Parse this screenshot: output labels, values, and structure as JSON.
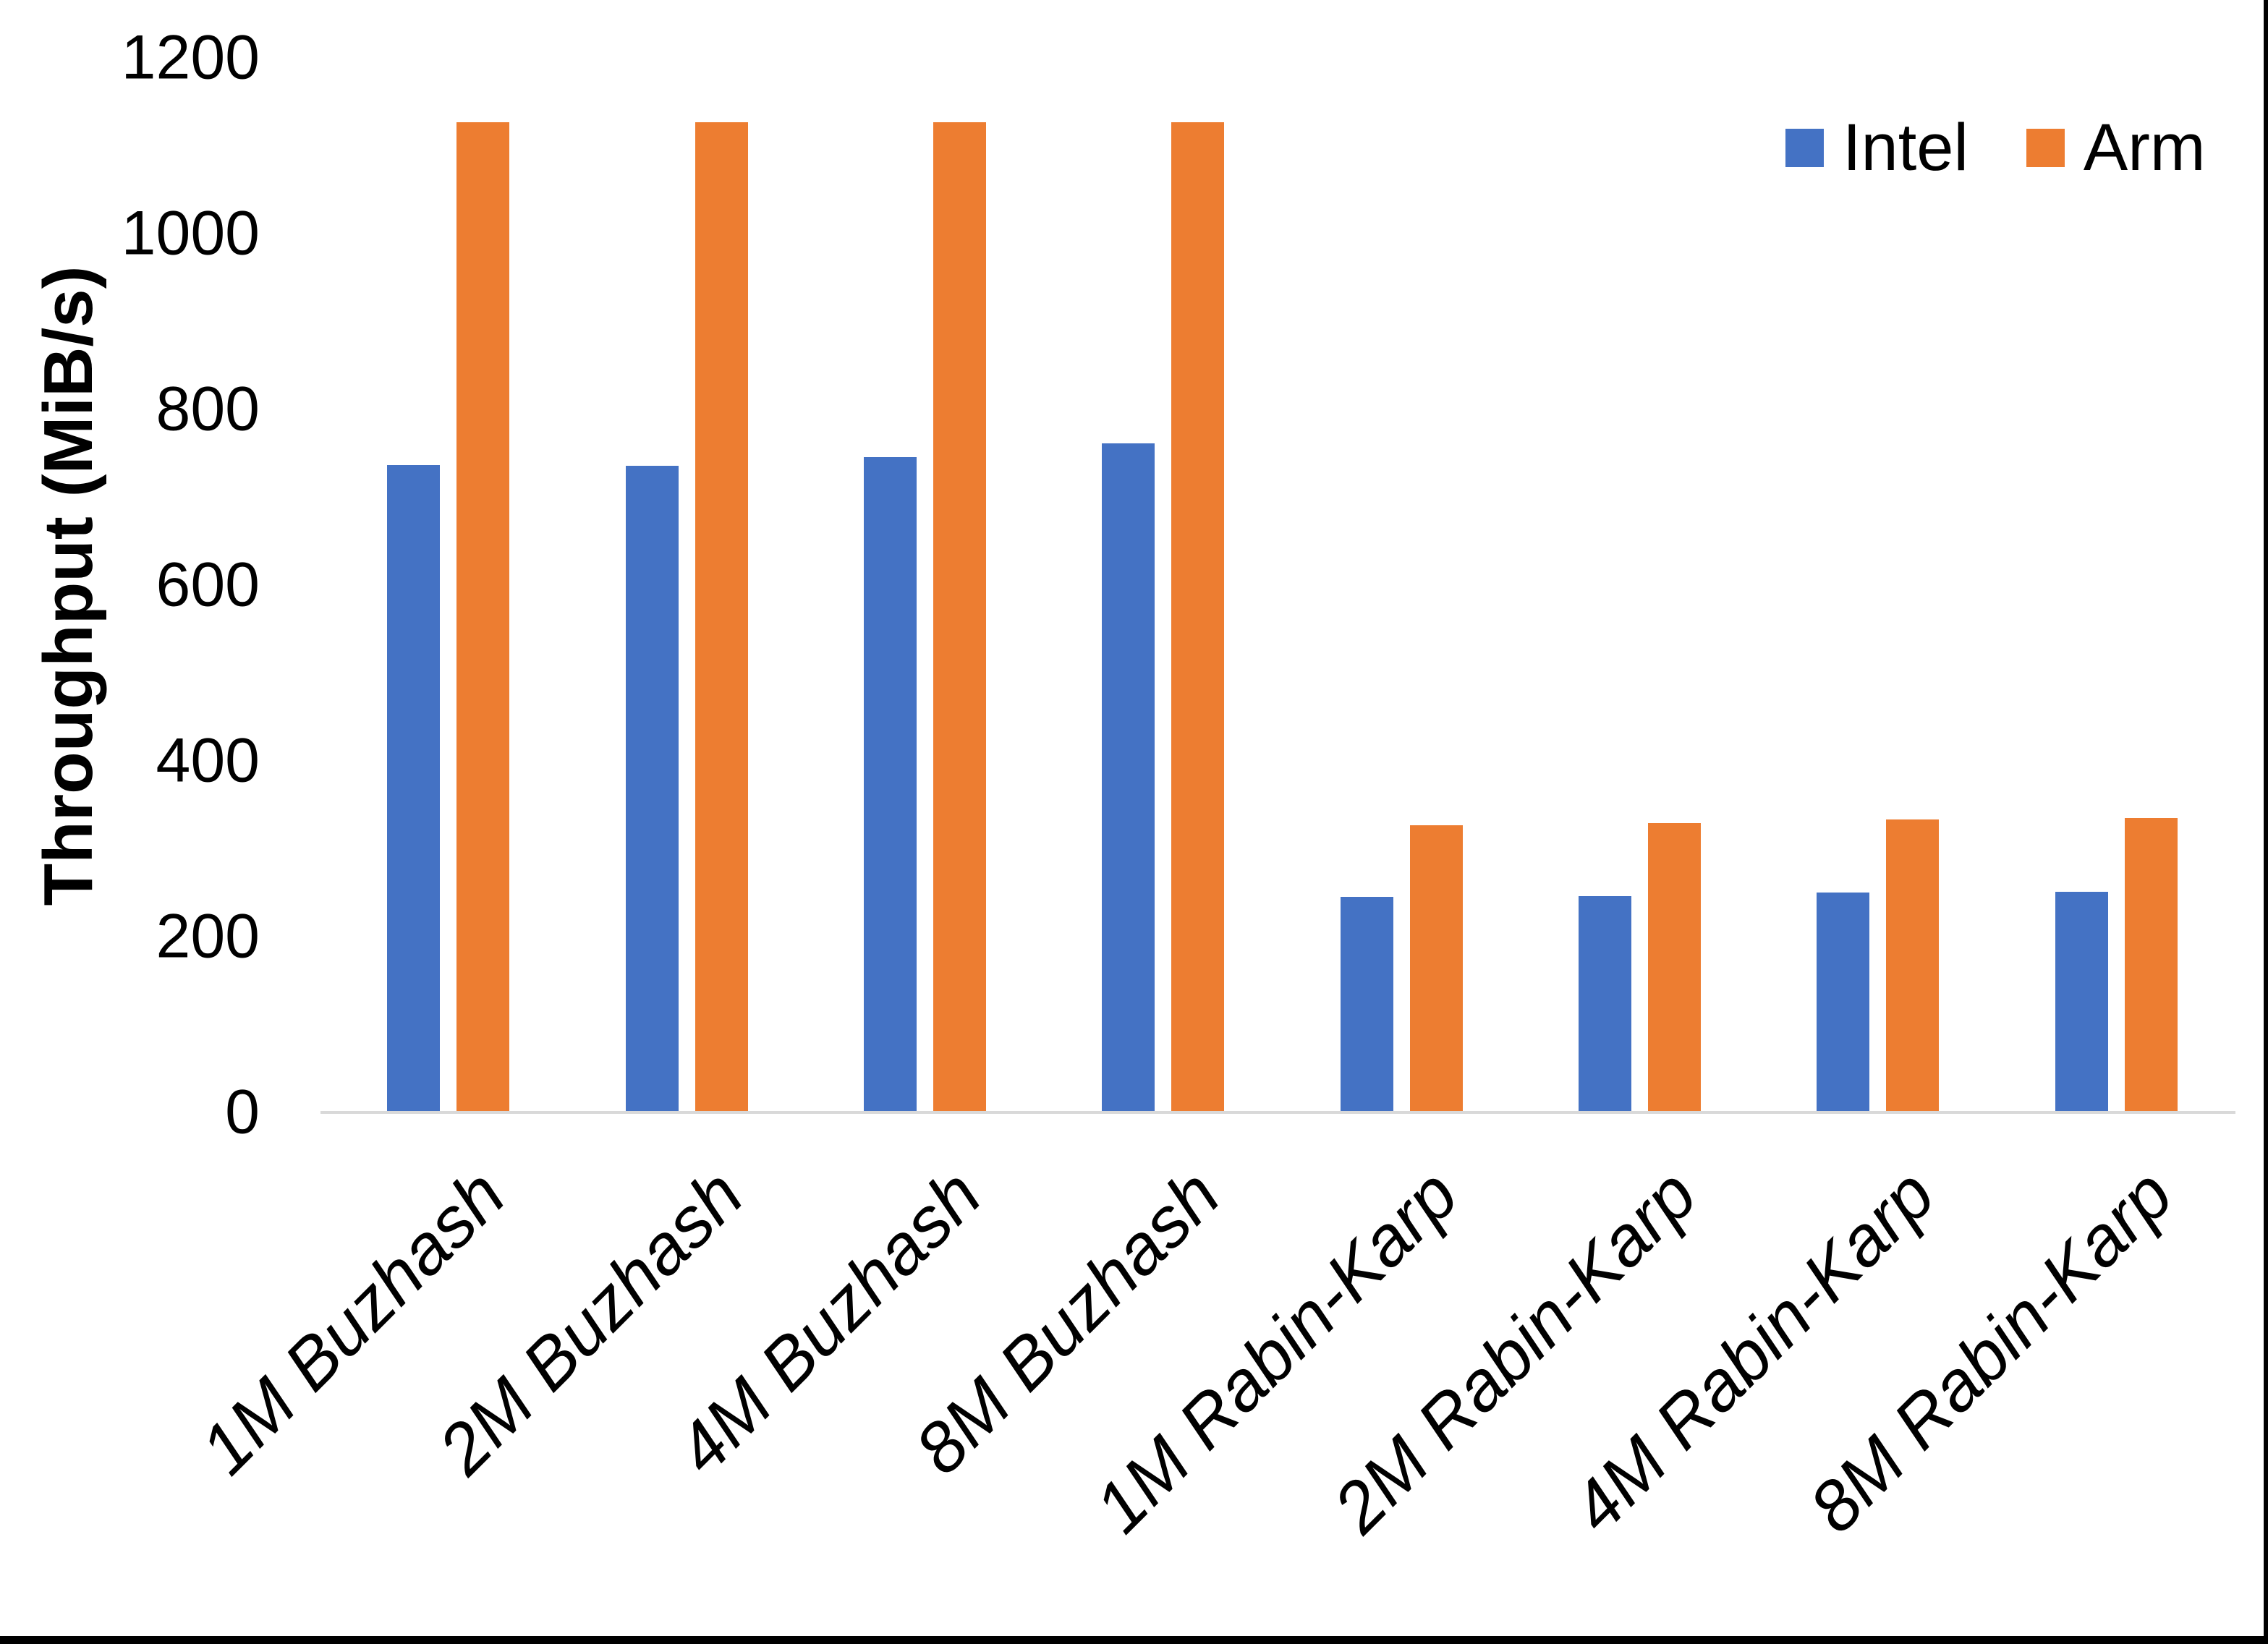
{
  "frame": {
    "background": "#FFFFFF",
    "border_color": "#000000"
  },
  "legend": {
    "items": [
      {
        "label": "Intel",
        "color": "#4472C4"
      },
      {
        "label": "Arm",
        "color": "#ED7D31"
      }
    ]
  },
  "y_axis": {
    "title": "Throughput (MiB/s)",
    "tick_labels": [
      "1200",
      "1000",
      "800",
      "600",
      "400",
      "200",
      "0"
    ]
  },
  "chart_data": {
    "type": "bar",
    "title": "",
    "xlabel": "",
    "ylabel": "Throughput (MiB/s)",
    "categories": [
      "1M Buzhash",
      "2M Buzhash",
      "4M Buzhash",
      "8M Buzhash",
      "1M Rabin-Karp",
      "2M Rabin-Karp",
      "4M Rabin-Karp",
      "8M Rabin-Karp"
    ],
    "series": [
      {
        "name": "Intel",
        "color": "#4472C4",
        "values": [
          737,
          736,
          746,
          761,
          245,
          246,
          250,
          251
        ]
      },
      {
        "name": "Arm",
        "color": "#ED7D31",
        "values": [
          1127,
          1127,
          1127,
          1127,
          327,
          329,
          333,
          335
        ]
      }
    ],
    "ylim": [
      0,
      1200
    ],
    "yticks": [
      0,
      200,
      400,
      600,
      800,
      1000,
      1200
    ],
    "grid": false,
    "legend_position": "top-right",
    "axis_line_color": "#D9D9D9"
  }
}
